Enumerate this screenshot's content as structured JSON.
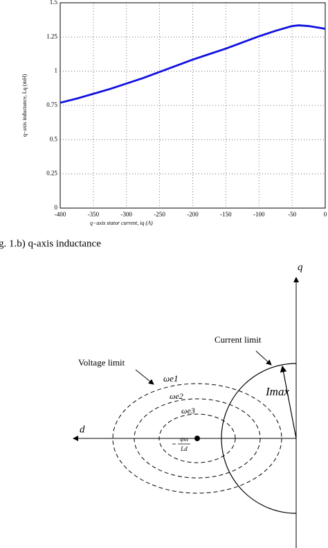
{
  "chart_data": {
    "type": "line",
    "xlabel": "q−axis stator current, iq (A)",
    "ylabel": "q−axis inductance, Lq (mH)",
    "x": [
      -400,
      -375,
      -350,
      -325,
      -300,
      -275,
      -250,
      -225,
      -200,
      -175,
      -150,
      -125,
      -100,
      -75,
      -50,
      -40,
      -25,
      0
    ],
    "series": [
      {
        "name": "Lq",
        "color": "#1010e0",
        "values": [
          0.77,
          0.8,
          0.835,
          0.87,
          0.91,
          0.95,
          0.995,
          1.04,
          1.085,
          1.125,
          1.165,
          1.21,
          1.255,
          1.295,
          1.33,
          1.335,
          1.33,
          1.31
        ]
      }
    ],
    "xlim": [
      -400,
      0
    ],
    "xticks": [
      -400,
      -350,
      -300,
      -250,
      -200,
      -150,
      -100,
      -50,
      0
    ],
    "ylim": [
      0,
      1.5
    ],
    "yticks": [
      0,
      0.25,
      0.5,
      0.75,
      1,
      1.25,
      1.5
    ],
    "grid": true
  },
  "caption": "g. 1.b) q-axis inductance",
  "diagram": {
    "q_axis": "q",
    "d_axis": "d",
    "current_limit": "Current limit",
    "voltage_limit": "Voltage limit",
    "omega_e1": "ωe1",
    "omega_e2": "ωe2",
    "omega_e3": "ωe3",
    "i_max": "Imax",
    "center_num": "ψm",
    "center_den": "Ld"
  }
}
